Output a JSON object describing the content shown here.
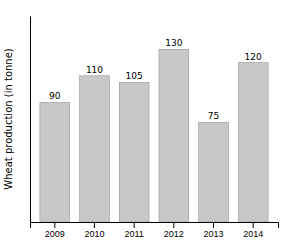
{
  "chart_data": {
    "type": "bar",
    "categories": [
      "2009",
      "2010",
      "2011",
      "2012",
      "2013",
      "2014"
    ],
    "values": [
      90,
      110,
      105,
      130,
      75,
      120
    ],
    "color": "#c8c8c8",
    "ylabel": "Wheat production (in tonne)",
    "ylim": [
      0,
      155
    ],
    "yticks": [],
    "grid": false,
    "data_labels": true,
    "tick_labels": "x"
  }
}
